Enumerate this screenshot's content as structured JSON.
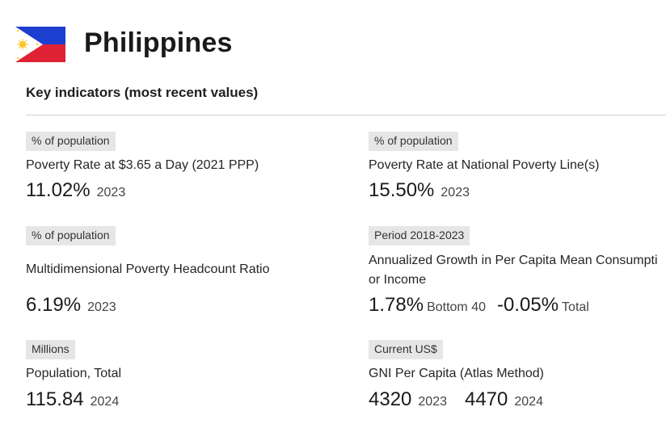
{
  "header": {
    "country": "Philippines",
    "flag_icon": "philippines-flag-icon",
    "flag_colors": {
      "blue": "#1d3fcf",
      "red": "#e02235",
      "white": "#ffffff",
      "sun": "#f9c623"
    }
  },
  "section": {
    "title": "Key indicators (most recent values)"
  },
  "indicators": [
    {
      "badge": "% of population",
      "label": "Poverty Rate at $3.65 a Day (2021 PPP)",
      "value": "11.02%",
      "year": "2023"
    },
    {
      "badge": "% of population",
      "label": "Poverty Rate at National Poverty Line(s)",
      "value": "15.50%",
      "year": "2023"
    },
    {
      "badge": "% of population",
      "label": "Multidimensional Poverty Headcount Ratio",
      "value": "6.19%",
      "year": "2023"
    },
    {
      "badge": "Period 2018-2023",
      "label_line1": "Annualized Growth in Per Capita Mean Consumpti",
      "label_line2": "or Income",
      "value1": "1.78%",
      "value1_sub": "Bottom 40",
      "value2": "-0.05%",
      "value2_sub": "Total"
    },
    {
      "badge": "Millions",
      "label": "Population, Total",
      "value": "115.84",
      "year": "2024"
    },
    {
      "badge": "Current US$",
      "label": "GNI Per Capita (Atlas Method)",
      "value1": "4320",
      "year1": "2023",
      "value2": "4470",
      "year2": "2024"
    }
  ]
}
